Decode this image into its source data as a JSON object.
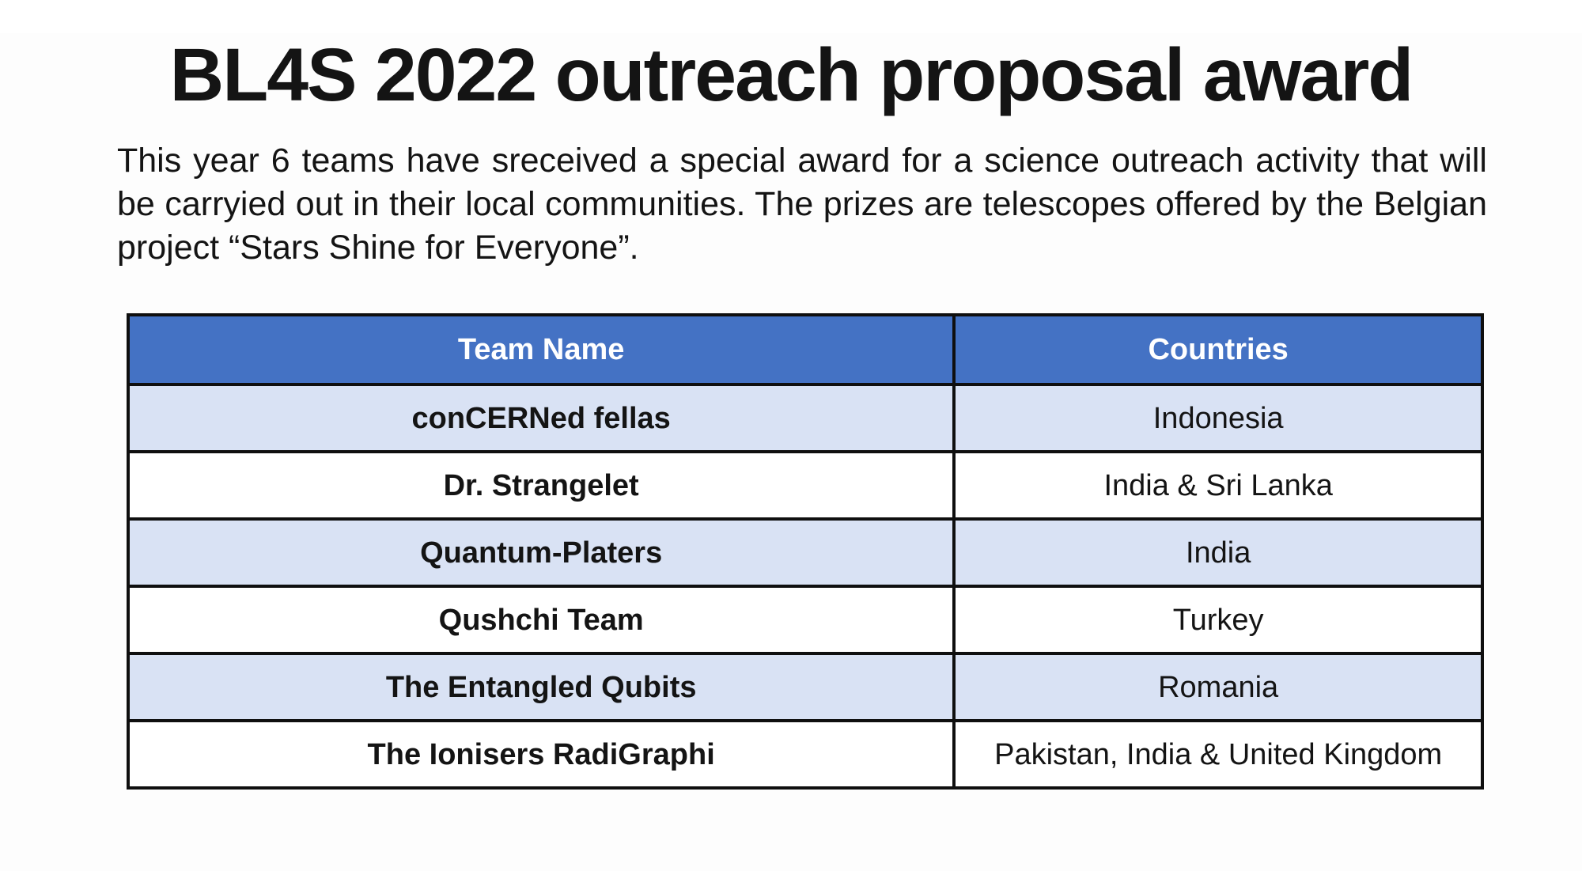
{
  "page": {
    "title": "BL4S 2022 outreach proposal award",
    "intro": "This year 6 teams have sreceived a special award for a science outreach activity that will be carryied out in their local communities. The prizes are telescopes offered by the Belgian project “Stars Shine for Everyone”."
  },
  "table": {
    "headers": [
      "Team Name",
      "Countries"
    ],
    "rows": [
      {
        "team": "conCERNed fellas",
        "countries": "Indonesia"
      },
      {
        "team": "Dr. Strangelet",
        "countries": "India & Sri Lanka"
      },
      {
        "team": "Quantum-Platers",
        "countries": "India"
      },
      {
        "team": "Qushchi Team",
        "countries": "Turkey"
      },
      {
        "team": "The Entangled Qubits",
        "countries": "Romania"
      },
      {
        "team": "The Ionisers RadiGraphi",
        "countries": "Pakistan, India & United Kingdom"
      }
    ]
  },
  "colors": {
    "page_bg": "#FDFDFD",
    "text": "#141414",
    "border": "#0F0F0F",
    "header_bg": "#4472C4",
    "header_text": "#FFFFFF",
    "row_bg": "#FFFFFF",
    "row_alt_bg": "#D9E2F4"
  }
}
